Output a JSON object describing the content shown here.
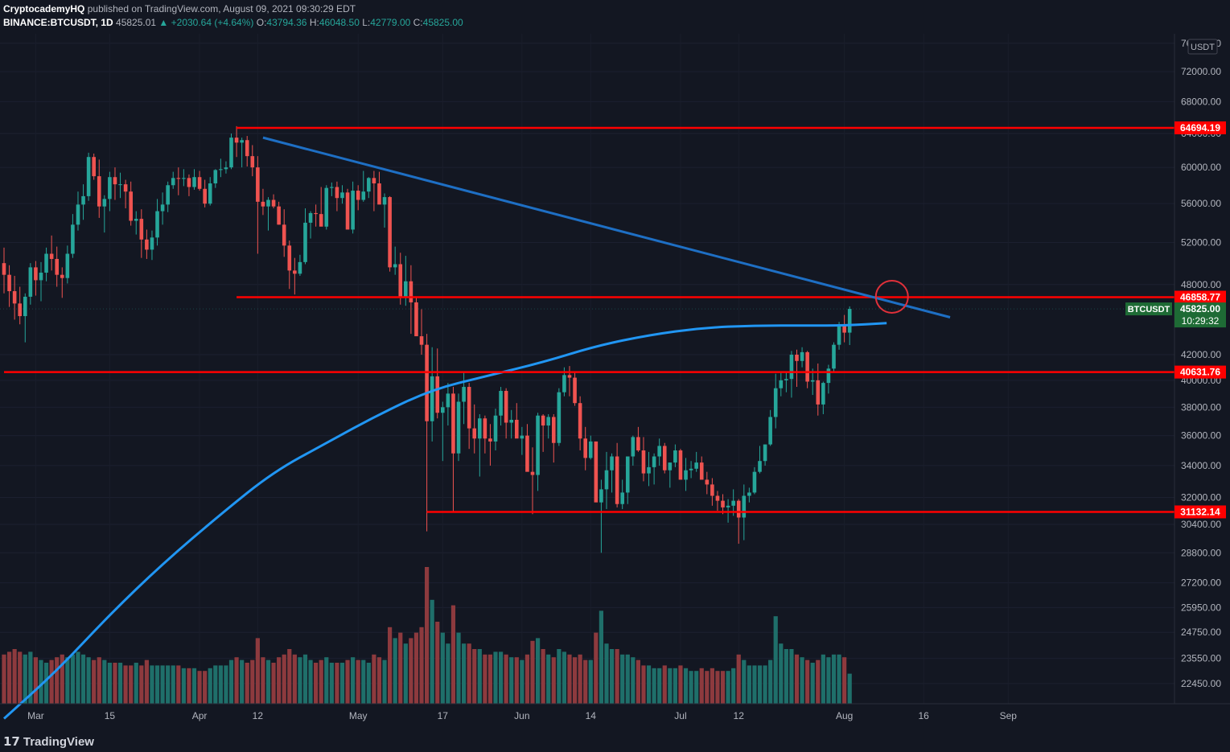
{
  "header": {
    "author": "CryptocademyHQ",
    "published": "published on TradingView.com, August 09, 2021 09:30:29 EDT",
    "symbol": "BINANCE:BTCUSDT, 1D",
    "last": "45825.01",
    "change": "▲ +2030.64 (+4.64%)",
    "o_label": "O:",
    "o": "43794.36",
    "h_label": "H:",
    "h": "46048.50",
    "l_label": "L:",
    "l": "42779.00",
    "c_label": "C:",
    "c": "45825.00"
  },
  "footer": {
    "brand": "TradingView",
    "logo_icon": "tradingview-logo-icon"
  },
  "colors": {
    "background": "#131722",
    "up": "#26a69a",
    "down": "#ef5350",
    "up_volume": "#1f6f6a",
    "down_volume": "#8d3a3e",
    "hline": "#ff0000",
    "ma": "#2196f3",
    "trend": "#1e6fc4",
    "axis_text": "#b2b5be"
  },
  "chart_data": {
    "type": "candlestick",
    "symbol": "BTCUSDT",
    "interval": "1D",
    "price_currency": "USDT",
    "date_range": [
      "2021-02-23",
      "2021-08-09"
    ],
    "y_ticks": [
      22450,
      23550,
      24750,
      25950,
      27200,
      28800,
      30400,
      32000,
      34000,
      36000,
      38000,
      40000,
      42000,
      48000,
      52000,
      56000,
      60000,
      64000,
      68000,
      72000,
      76000
    ],
    "y_scale": "log",
    "x_ticks": [
      {
        "date": "2021-03-01",
        "label": "Mar"
      },
      {
        "date": "2021-03-15",
        "label": "15"
      },
      {
        "date": "2021-04-01",
        "label": "Apr"
      },
      {
        "date": "2021-04-12",
        "label": "12"
      },
      {
        "date": "2021-05-01",
        "label": "May"
      },
      {
        "date": "2021-05-17",
        "label": "17"
      },
      {
        "date": "2021-06-01",
        "label": "Jun"
      },
      {
        "date": "2021-06-14",
        "label": "14"
      },
      {
        "date": "2021-07-01",
        "label": "Jul"
      },
      {
        "date": "2021-07-12",
        "label": "12"
      },
      {
        "date": "2021-08-01",
        "label": "Aug"
      },
      {
        "date": "2021-08-16",
        "label": "16"
      },
      {
        "date": "2021-09-01",
        "label": "Sep"
      }
    ],
    "horizontal_levels": [
      {
        "value": 64694.19,
        "label": "64694.19",
        "start": "2021-04-08"
      },
      {
        "value": 46858.77,
        "label": "46858.77",
        "start": "2021-04-08"
      },
      {
        "value": 40631.76,
        "label": "40631.76",
        "start": "2021-02-23"
      },
      {
        "value": 31132.14,
        "label": "31132.14",
        "start": "2021-05-14"
      }
    ],
    "trendline": {
      "from": {
        "date": "2021-04-13",
        "value": 63500
      },
      "to": {
        "date": "2021-08-21",
        "value": 45100
      }
    },
    "highlight_circle": {
      "date": "2021-08-10",
      "value": 46900
    },
    "last_price": {
      "symbol_label": "BTCUSDT",
      "value": "45825.00",
      "countdown": "10:29:32"
    },
    "moving_average": [
      {
        "date": "2021-02-23",
        "value": 21000
      },
      {
        "date": "2021-03-05",
        "value": 23000
      },
      {
        "date": "2021-03-15",
        "value": 25600
      },
      {
        "date": "2021-03-25",
        "value": 28200
      },
      {
        "date": "2021-04-05",
        "value": 31000
      },
      {
        "date": "2021-04-15",
        "value": 33600
      },
      {
        "date": "2021-04-25",
        "value": 35500
      },
      {
        "date": "2021-05-05",
        "value": 37500
      },
      {
        "date": "2021-05-15",
        "value": 39300
      },
      {
        "date": "2021-05-25",
        "value": 40300
      },
      {
        "date": "2021-06-05",
        "value": 41400
      },
      {
        "date": "2021-06-15",
        "value": 42700
      },
      {
        "date": "2021-06-25",
        "value": 43600
      },
      {
        "date": "2021-07-05",
        "value": 44200
      },
      {
        "date": "2021-07-15",
        "value": 44400
      },
      {
        "date": "2021-07-25",
        "value": 44400
      },
      {
        "date": "2021-08-01",
        "value": 44400
      },
      {
        "date": "2021-08-09",
        "value": 44600
      }
    ],
    "candles": [
      [
        50000,
        51500,
        47200,
        48900,
        0.9
      ],
      [
        48900,
        49800,
        46000,
        47400,
        0.95
      ],
      [
        47400,
        48800,
        44900,
        46300,
        1.0
      ],
      [
        46300,
        47800,
        44500,
        45200,
        0.95
      ],
      [
        45200,
        47200,
        43000,
        46900,
        0.9
      ],
      [
        46900,
        50000,
        46200,
        49600,
        0.95
      ],
      [
        49600,
        50200,
        47000,
        48400,
        0.85
      ],
      [
        48400,
        50100,
        46500,
        49100,
        0.8
      ],
      [
        49100,
        51500,
        48300,
        50900,
        0.75
      ],
      [
        50900,
        52700,
        49300,
        50400,
        0.8
      ],
      [
        50400,
        51600,
        47800,
        48900,
        0.85
      ],
      [
        48900,
        49600,
        46800,
        48600,
        0.9
      ],
      [
        48600,
        51700,
        48100,
        50900,
        0.85
      ],
      [
        50900,
        54900,
        50500,
        53800,
        0.9
      ],
      [
        53800,
        57300,
        53200,
        55900,
        0.95
      ],
      [
        55900,
        58100,
        54300,
        56800,
        0.9
      ],
      [
        56800,
        61700,
        56300,
        61200,
        0.85
      ],
      [
        61200,
        61600,
        58600,
        59000,
        0.8
      ],
      [
        59000,
        60900,
        54500,
        55700,
        0.85
      ],
      [
        55700,
        56900,
        53000,
        56500,
        0.8
      ],
      [
        56500,
        59500,
        55200,
        58900,
        0.75
      ],
      [
        58900,
        60000,
        56400,
        58100,
        0.75
      ],
      [
        58100,
        59400,
        56600,
        58100,
        0.75
      ],
      [
        58100,
        58600,
        55500,
        57300,
        0.7
      ],
      [
        57300,
        58400,
        53700,
        54200,
        0.7
      ],
      [
        54200,
        55200,
        52800,
        54400,
        0.75
      ],
      [
        54400,
        55400,
        50500,
        52300,
        0.7
      ],
      [
        52300,
        53300,
        50400,
        51300,
        0.8
      ],
      [
        51300,
        53200,
        50300,
        52500,
        0.7
      ],
      [
        52500,
        56500,
        51700,
        55200,
        0.7
      ],
      [
        55200,
        57200,
        53800,
        55900,
        0.7
      ],
      [
        55900,
        58400,
        55100,
        58000,
        0.7
      ],
      [
        58000,
        59500,
        57600,
        58800,
        0.7
      ],
      [
        58800,
        60000,
        56900,
        58700,
        0.7
      ],
      [
        58700,
        59800,
        57900,
        58800,
        0.65
      ],
      [
        58800,
        59200,
        56800,
        57800,
        0.65
      ],
      [
        57800,
        59800,
        57500,
        58900,
        0.65
      ],
      [
        58900,
        59600,
        57400,
        57600,
        0.6
      ],
      [
        57600,
        58600,
        55600,
        56000,
        0.6
      ],
      [
        56000,
        58900,
        55800,
        58200,
        0.65
      ],
      [
        58200,
        59800,
        57700,
        59700,
        0.7
      ],
      [
        59700,
        61000,
        58900,
        59800,
        0.7
      ],
      [
        59800,
        60700,
        59300,
        60000,
        0.7
      ],
      [
        60000,
        64000,
        59800,
        63500,
        0.8
      ],
      [
        63500,
        64900,
        61200,
        62900,
        0.85
      ],
      [
        62900,
        63500,
        60000,
        63200,
        0.8
      ],
      [
        63200,
        63700,
        60100,
        61300,
        0.75
      ],
      [
        61300,
        62600,
        59000,
        60000,
        0.8
      ],
      [
        60000,
        61300,
        50900,
        56200,
        1.2
      ],
      [
        56200,
        57600,
        54800,
        55700,
        0.85
      ],
      [
        55700,
        56700,
        53200,
        56400,
        0.8
      ],
      [
        56400,
        57000,
        55500,
        55700,
        0.75
      ],
      [
        55700,
        56200,
        53800,
        53800,
        0.85
      ],
      [
        53800,
        55400,
        50600,
        51700,
        0.9
      ],
      [
        51700,
        52200,
        47600,
        49300,
        1.0
      ],
      [
        49300,
        50500,
        47100,
        49000,
        0.9
      ],
      [
        49000,
        50800,
        48800,
        50100,
        0.85
      ],
      [
        50100,
        55500,
        49900,
        54000,
        0.9
      ],
      [
        54000,
        55200,
        52400,
        55000,
        0.8
      ],
      [
        55000,
        55900,
        53600,
        54900,
        0.75
      ],
      [
        54900,
        57800,
        53800,
        53600,
        0.8
      ],
      [
        53600,
        58000,
        53300,
        57700,
        0.85
      ],
      [
        57700,
        58300,
        56800,
        57800,
        0.75
      ],
      [
        57800,
        58400,
        55200,
        56600,
        0.75
      ],
      [
        56600,
        58000,
        56000,
        57200,
        0.75
      ],
      [
        57200,
        57600,
        53600,
        53300,
        0.8
      ],
      [
        53300,
        58400,
        52900,
        57400,
        0.85
      ],
      [
        57400,
        58000,
        55300,
        56400,
        0.8
      ],
      [
        56400,
        59600,
        56200,
        57300,
        0.8
      ],
      [
        57300,
        58900,
        56600,
        58800,
        0.75
      ],
      [
        58800,
        59600,
        55200,
        58200,
        0.9
      ],
      [
        58200,
        59500,
        56000,
        55900,
        0.85
      ],
      [
        55900,
        57100,
        53500,
        56700,
        0.8
      ],
      [
        56700,
        56800,
        49200,
        49600,
        1.4
      ],
      [
        49600,
        51600,
        48900,
        49900,
        1.2
      ],
      [
        49900,
        51000,
        46200,
        46800,
        1.3
      ],
      [
        46800,
        50700,
        46100,
        48300,
        1.1
      ],
      [
        48300,
        49800,
        43700,
        46400,
        1.2
      ],
      [
        46400,
        46900,
        43600,
        43500,
        1.3
      ],
      [
        43500,
        45800,
        42000,
        42800,
        1.4
      ],
      [
        42800,
        43700,
        30000,
        37000,
        2.5
      ],
      [
        37000,
        42600,
        35600,
        40300,
        1.9
      ],
      [
        40300,
        42500,
        37200,
        37600,
        1.5
      ],
      [
        37600,
        38400,
        34300,
        38000,
        1.3
      ],
      [
        38000,
        39800,
        36700,
        39000,
        1.1
      ],
      [
        39000,
        39500,
        31100,
        34800,
        1.8
      ],
      [
        34800,
        39000,
        34300,
        38400,
        1.3
      ],
      [
        38400,
        40700,
        36800,
        39500,
        1.1
      ],
      [
        39500,
        39800,
        35100,
        36500,
        1.1
      ],
      [
        36500,
        38200,
        34800,
        35800,
        1.0
      ],
      [
        35800,
        37500,
        33300,
        37200,
        1.0
      ],
      [
        37200,
        37400,
        34800,
        35800,
        0.9
      ],
      [
        35800,
        36800,
        34000,
        35600,
        0.9
      ],
      [
        35600,
        37900,
        35000,
        37400,
        0.95
      ],
      [
        37400,
        39500,
        36700,
        39200,
        0.95
      ],
      [
        39200,
        39400,
        35800,
        36900,
        0.9
      ],
      [
        36900,
        37800,
        35800,
        37100,
        0.85
      ],
      [
        37100,
        38300,
        35900,
        35800,
        0.85
      ],
      [
        35800,
        36600,
        34700,
        36000,
        0.8
      ],
      [
        36000,
        36800,
        33700,
        33600,
        0.9
      ],
      [
        33600,
        35200,
        31000,
        33400,
        1.15
      ],
      [
        33400,
        37600,
        32400,
        37400,
        1.2
      ],
      [
        37400,
        37500,
        34900,
        36700,
        1.0
      ],
      [
        36700,
        37500,
        35800,
        37300,
        0.9
      ],
      [
        37300,
        37500,
        34200,
        35500,
        0.85
      ],
      [
        35500,
        39400,
        35300,
        39100,
        1.0
      ],
      [
        39100,
        41000,
        38800,
        40400,
        0.95
      ],
      [
        40400,
        41100,
        38800,
        40200,
        0.9
      ],
      [
        40200,
        40600,
        38100,
        38300,
        0.85
      ],
      [
        38300,
        38800,
        35000,
        35800,
        0.9
      ],
      [
        35800,
        36600,
        33700,
        34500,
        0.8
      ],
      [
        34500,
        36000,
        34400,
        35600,
        0.8
      ],
      [
        35600,
        35600,
        31800,
        31700,
        1.3
      ],
      [
        31700,
        33100,
        28800,
        32500,
        1.7
      ],
      [
        32500,
        34900,
        31300,
        33700,
        1.1
      ],
      [
        33700,
        34800,
        32300,
        34600,
        1.0
      ],
      [
        34600,
        35500,
        31400,
        31600,
        1.0
      ],
      [
        31600,
        33100,
        31300,
        32300,
        0.9
      ],
      [
        32300,
        34600,
        31600,
        34600,
        0.9
      ],
      [
        34600,
        36000,
        34000,
        35900,
        0.85
      ],
      [
        35900,
        36600,
        34900,
        35000,
        0.8
      ],
      [
        35000,
        35900,
        33000,
        33500,
        0.7
      ],
      [
        33500,
        34900,
        32700,
        33900,
        0.7
      ],
      [
        33900,
        34800,
        32800,
        34600,
        0.65
      ],
      [
        34600,
        35800,
        34000,
        35300,
        0.65
      ],
      [
        35300,
        35500,
        33500,
        33700,
        0.7
      ],
      [
        33700,
        34200,
        32600,
        34200,
        0.65
      ],
      [
        34200,
        35400,
        33900,
        35000,
        0.65
      ],
      [
        35000,
        35100,
        33300,
        33100,
        0.7
      ],
      [
        33100,
        34500,
        32400,
        33700,
        0.65
      ],
      [
        33700,
        34300,
        33200,
        33800,
        0.6
      ],
      [
        33800,
        34900,
        33600,
        34200,
        0.6
      ],
      [
        34200,
        34600,
        33300,
        33100,
        0.65
      ],
      [
        33100,
        33600,
        32200,
        32800,
        0.6
      ],
      [
        32800,
        33200,
        31500,
        32100,
        0.65
      ],
      [
        32100,
        32400,
        31200,
        31800,
        0.6
      ],
      [
        31800,
        32200,
        31000,
        31400,
        0.6
      ],
      [
        31400,
        31900,
        30500,
        31500,
        0.6
      ],
      [
        31500,
        32500,
        30900,
        31800,
        0.65
      ],
      [
        31800,
        31900,
        29300,
        30800,
        0.9
      ],
      [
        30800,
        32800,
        29500,
        32100,
        0.8
      ],
      [
        32100,
        32600,
        31700,
        32300,
        0.7
      ],
      [
        32300,
        33900,
        32200,
        33600,
        0.7
      ],
      [
        33600,
        35300,
        33500,
        34300,
        0.7
      ],
      [
        34300,
        35400,
        34000,
        35400,
        0.7
      ],
      [
        35400,
        37800,
        35300,
        37300,
        0.8
      ],
      [
        37300,
        40500,
        36500,
        39400,
        1.6
      ],
      [
        39400,
        40600,
        38800,
        40000,
        1.1
      ],
      [
        40000,
        40600,
        39100,
        40100,
        1.0
      ],
      [
        40100,
        42300,
        38700,
        42000,
        1.0
      ],
      [
        42000,
        42400,
        39500,
        41500,
        0.9
      ],
      [
        41500,
        42600,
        41000,
        42200,
        0.85
      ],
      [
        42200,
        42300,
        39400,
        39900,
        0.8
      ],
      [
        39900,
        40900,
        38900,
        40000,
        0.75
      ],
      [
        40000,
        41300,
        37400,
        38200,
        0.8
      ],
      [
        38200,
        39900,
        37500,
        39800,
        0.9
      ],
      [
        39800,
        41200,
        39000,
        40900,
        0.85
      ],
      [
        40900,
        43000,
        40600,
        42800,
        0.9
      ],
      [
        42800,
        44700,
        42400,
        44500,
        0.9
      ],
      [
        44500,
        45300,
        43000,
        43800,
        0.85
      ],
      [
        43800,
        46048,
        42779,
        45825,
        0.55
      ]
    ]
  }
}
